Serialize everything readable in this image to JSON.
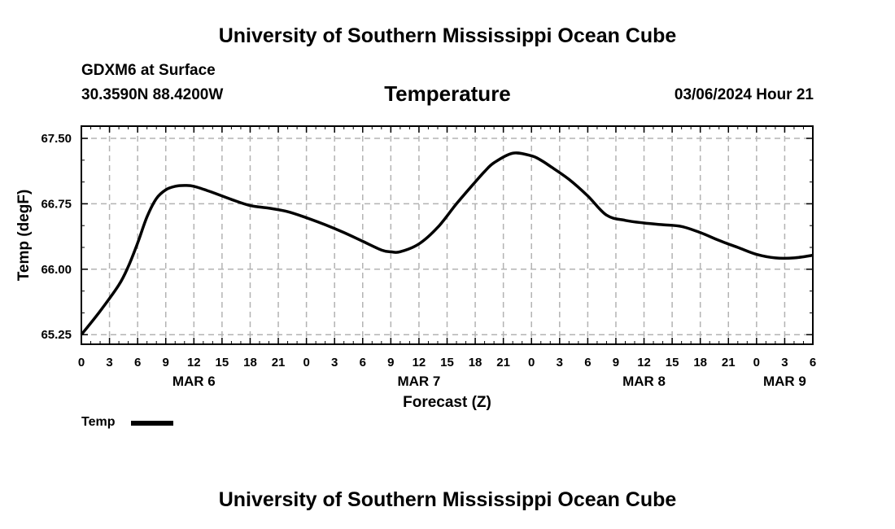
{
  "header": {
    "title_top": "University of Southern Mississippi Ocean Cube",
    "station": "GDXM6 at Surface",
    "coords": "30.3590N  88.4200W",
    "variable": "Temperature",
    "datetime": "03/06/2024 Hour 21"
  },
  "footer": {
    "title_bottom": "University of Southern Mississippi Ocean Cube"
  },
  "legend": {
    "label": "Temp"
  },
  "chart_data": {
    "type": "line",
    "title": "Temperature",
    "xlabel": "Forecast (Z)",
    "ylabel": "Temp (degF)",
    "ylim": [
      65.14,
      67.64
    ],
    "xlim": [
      0,
      78
    ],
    "grid": true,
    "legend_position": "bottom-left",
    "x_tick_labels": [
      "0",
      "3",
      "6",
      "9",
      "12",
      "15",
      "18",
      "21",
      "0",
      "3",
      "6",
      "9",
      "12",
      "15",
      "18",
      "21",
      "0",
      "3",
      "6",
      "9",
      "12",
      "15",
      "18",
      "21",
      "0",
      "3",
      "6"
    ],
    "date_labels": [
      {
        "hour": 12,
        "label": "MAR 6"
      },
      {
        "hour": 36,
        "label": "MAR 7"
      },
      {
        "hour": 60,
        "label": "MAR 8"
      },
      {
        "hour": 75,
        "label": "MAR 9"
      }
    ],
    "y_ticks": [
      65.25,
      66.0,
      66.75,
      67.5
    ],
    "y_tick_labels": [
      "65.25",
      "66.00",
      "66.75",
      "67.50"
    ],
    "series": [
      {
        "name": "Temp",
        "color": "#000000",
        "x": [
          0,
          2,
          4,
          5,
          6,
          7,
          8,
          9,
          10,
          11,
          12,
          14,
          16,
          18,
          20,
          22,
          24,
          26,
          28,
          30,
          32,
          33,
          34,
          36,
          38,
          40,
          42,
          43,
          44,
          46,
          48,
          49,
          50,
          52,
          54,
          56,
          58,
          60,
          62,
          64,
          66,
          68,
          70,
          72,
          74,
          76,
          78
        ],
        "y": [
          65.25,
          65.52,
          65.82,
          66.03,
          66.3,
          66.6,
          66.81,
          66.91,
          66.95,
          66.96,
          66.95,
          66.88,
          66.8,
          66.73,
          66.7,
          66.66,
          66.59,
          66.51,
          66.42,
          66.32,
          66.22,
          66.2,
          66.2,
          66.29,
          66.48,
          66.75,
          67.0,
          67.12,
          67.22,
          67.33,
          67.3,
          67.25,
          67.18,
          67.03,
          66.84,
          66.62,
          66.56,
          66.53,
          66.51,
          66.49,
          66.42,
          66.33,
          66.25,
          66.17,
          66.13,
          66.13,
          66.16
        ]
      }
    ]
  }
}
